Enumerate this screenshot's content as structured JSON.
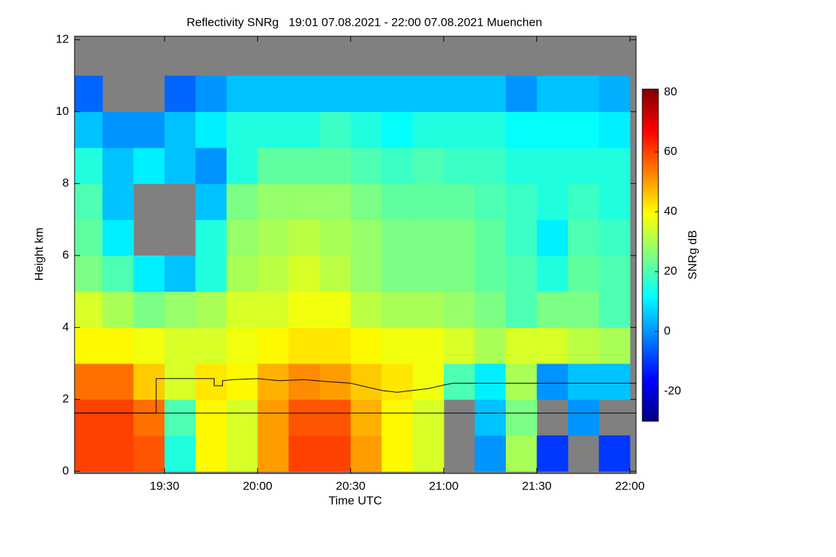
{
  "chart_data": {
    "type": "heatmap",
    "title": "Reflectivity SNRg   19:01 07.08.2021 - 22:00 07.08.2021 Muenchen",
    "x_label": "Time UTC",
    "y_label": "Height km",
    "x": [
      1145,
      1155,
      1165,
      1175,
      1185,
      1195,
      1205,
      1215,
      1225,
      1235,
      1245,
      1255,
      1265,
      1275,
      1285,
      1295,
      1305,
      1315
    ],
    "y": [
      0.5,
      1.5,
      2.5,
      3.5,
      4.5,
      5.5,
      6.5,
      7.5,
      8.5,
      9.5,
      10.5,
      11.5
    ],
    "z": [
      [
        60,
        60,
        58,
        15,
        40,
        35,
        50,
        60,
        60,
        50,
        40,
        35,
        null,
        0,
        30,
        -10,
        null,
        -10
      ],
      [
        60,
        60,
        55,
        20,
        40,
        35,
        50,
        58,
        58,
        48,
        40,
        35,
        null,
        5,
        25,
        null,
        0,
        null
      ],
      [
        55,
        55,
        45,
        35,
        42,
        40,
        48,
        52,
        50,
        45,
        42,
        38,
        20,
        10,
        30,
        0,
        5,
        5
      ],
      [
        40,
        40,
        38,
        35,
        35,
        38,
        40,
        42,
        42,
        40,
        38,
        38,
        35,
        30,
        35,
        35,
        32,
        30
      ],
      [
        35,
        30,
        25,
        28,
        30,
        35,
        35,
        38,
        38,
        32,
        30,
        30,
        28,
        25,
        20,
        25,
        25,
        20
      ],
      [
        25,
        20,
        10,
        5,
        15,
        30,
        32,
        35,
        32,
        28,
        25,
        25,
        25,
        22,
        20,
        15,
        22,
        20
      ],
      [
        22,
        10,
        null,
        null,
        15,
        28,
        30,
        32,
        30,
        28,
        25,
        25,
        25,
        22,
        18,
        10,
        20,
        18
      ],
      [
        20,
        5,
        null,
        null,
        5,
        25,
        28,
        28,
        28,
        25,
        22,
        22,
        22,
        20,
        18,
        15,
        18,
        15
      ],
      [
        15,
        5,
        10,
        5,
        0,
        15,
        22,
        22,
        22,
        20,
        18,
        20,
        18,
        18,
        15,
        15,
        15,
        15
      ],
      [
        5,
        0,
        0,
        5,
        10,
        15,
        15,
        15,
        18,
        15,
        12,
        15,
        15,
        15,
        12,
        12,
        12,
        10
      ],
      [
        -5,
        null,
        null,
        -5,
        0,
        5,
        5,
        5,
        5,
        5,
        5,
        5,
        5,
        5,
        0,
        5,
        5,
        3
      ],
      [
        null,
        null,
        null,
        null,
        null,
        null,
        null,
        null,
        null,
        null,
        null,
        null,
        null,
        null,
        null,
        null,
        null,
        null
      ]
    ],
    "xlim": [
      1141,
      1322
    ],
    "xticks": [
      {
        "value": 1170,
        "label": "19:30"
      },
      {
        "value": 1200,
        "label": "20:00"
      },
      {
        "value": 1230,
        "label": "20:30"
      },
      {
        "value": 1260,
        "label": "21:00"
      },
      {
        "value": 1290,
        "label": "21:30"
      },
      {
        "value": 1320,
        "label": "22:00"
      }
    ],
    "ylim": [
      0,
      12
    ],
    "yticks": [
      0,
      2,
      4,
      6,
      8,
      10,
      12
    ],
    "colormap": "jet",
    "null_color": "#808080",
    "colorbar": {
      "label": "SNRg dB",
      "lim": [
        -30,
        81
      ],
      "ticks": [
        -20,
        0,
        20,
        40,
        60,
        80
      ]
    },
    "lines": [
      {
        "color": "#000000",
        "x": [
          1141,
          1322
        ],
        "y": [
          1.62,
          1.62
        ]
      },
      {
        "color": "#000000",
        "x": [
          1141,
          1167.3,
          1167.3,
          1186,
          1186,
          1188.7,
          1188.7,
          1192,
          1200,
          1207,
          1215,
          1222,
          1230,
          1235,
          1240,
          1245,
          1250,
          1255,
          1260,
          1263,
          1322
        ],
        "y": [
          1.62,
          1.62,
          2.58,
          2.58,
          2.38,
          2.38,
          2.52,
          2.55,
          2.58,
          2.52,
          2.55,
          2.5,
          2.45,
          2.35,
          2.25,
          2.2,
          2.25,
          2.3,
          2.4,
          2.45,
          2.45
        ]
      }
    ]
  }
}
